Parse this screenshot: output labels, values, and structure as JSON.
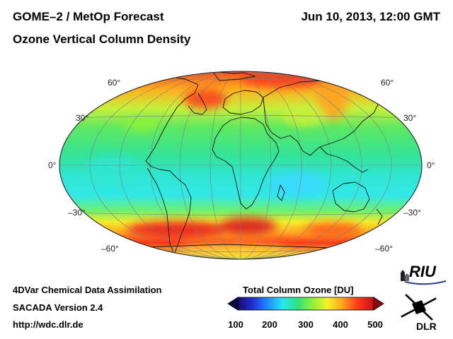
{
  "header": {
    "title": "GOME–2 / MetOp Forecast",
    "subtitle": "Ozone Vertical Column Density",
    "datetime": "Jun 10, 2013, 12:00 GMT"
  },
  "map": {
    "projection": "Hammer",
    "lat_labels_left": [
      "60°",
      "30°",
      "0°",
      "–30°",
      "–60°"
    ],
    "lat_labels_right": [
      "60°",
      "30°",
      "0°",
      "–30°",
      "–60°"
    ]
  },
  "colorbar": {
    "title": "Total Column Ozone [DU]",
    "ticks": [
      "100",
      "200",
      "300",
      "400",
      "500"
    ],
    "min": 100,
    "max": 500,
    "colors": [
      "#1a0a6e",
      "#1f2fd6",
      "#1e8cff",
      "#27e6f0",
      "#2fe27a",
      "#8ff03a",
      "#f7f02a",
      "#ffa21e",
      "#ff3a1a",
      "#c8101a"
    ]
  },
  "footer": {
    "assimilation": "4DVar Chemical Data Assimilation",
    "version": "SACADA Version 2.4",
    "url": "http://wdc.dlr.de"
  },
  "logos": {
    "riu": "RIU",
    "dlr": "DLR"
  }
}
